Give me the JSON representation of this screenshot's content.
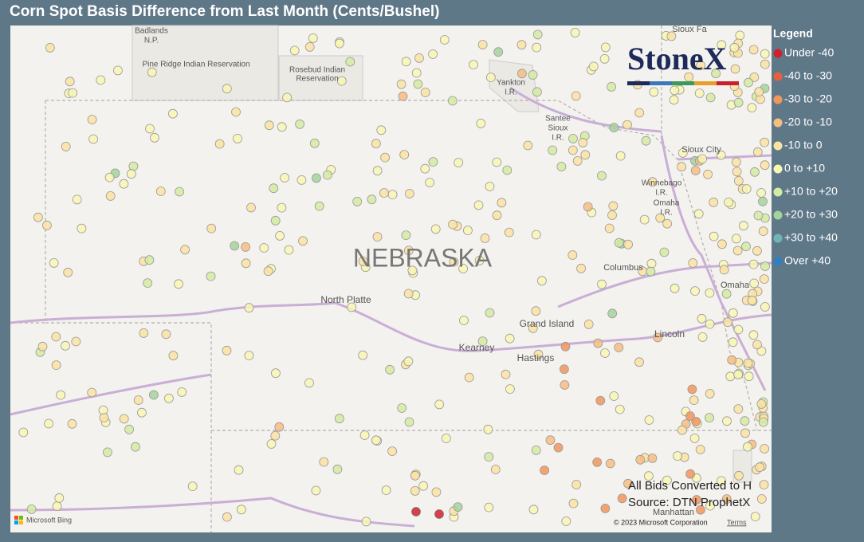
{
  "title": "Corn Spot Basis Difference from Last Month (Cents/Bushel)",
  "legend": {
    "title": "Legend",
    "items": [
      {
        "name": "Under -40",
        "color": "#d0202e"
      },
      {
        "name": "-40 to -30",
        "color": "#e4603f"
      },
      {
        "name": "-30 to -20",
        "color": "#f0975c"
      },
      {
        "name": "-20 to -10",
        "color": "#f6bd80"
      },
      {
        "name": "-10 to 0",
        "color": "#fbe3a2"
      },
      {
        "name": "0 to +10",
        "color": "#f8f6b4"
      },
      {
        "name": "+10 to +20",
        "color": "#d3eba2"
      },
      {
        "name": "+20 to +30",
        "color": "#a3d49c"
      },
      {
        "name": "+30 to +40",
        "color": "#6fb5b1"
      },
      {
        "name": "Over +40",
        "color": "#2f7fc1"
      }
    ]
  },
  "map": {
    "labels": [
      "Badlands",
      "N.P.",
      "Pine Ridge Indian Reservation",
      "Rosebud Indian",
      "Reservation",
      "Yankton",
      "I.R.",
      "Santee",
      "Sioux",
      "I.R.",
      "Sioux Fa",
      "Sioux City",
      "Winnebago",
      "I.R.",
      "Omaha",
      "I.R.",
      "Omaha",
      "Columbus",
      "NEBRASKA",
      "North Platte",
      "Grand Island",
      "Kearney",
      "Hastings",
      "Lincoln",
      "Manhattan"
    ],
    "logo": "StoneX",
    "notes": [
      "All Bids Converted to H",
      "Source: DTN ProphetX"
    ],
    "provider": "Microsoft Bing",
    "copyright": "© 2023 Microsoft Corporation",
    "terms": "Terms"
  }
}
